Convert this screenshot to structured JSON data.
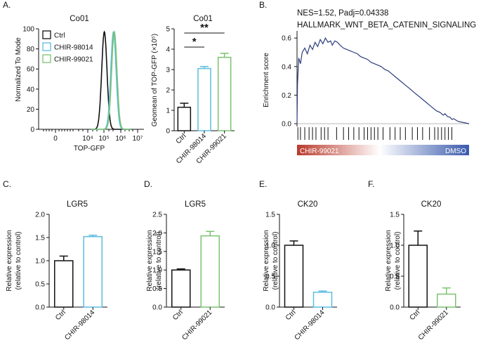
{
  "panel_letters": {
    "a": "A.",
    "b": "B.",
    "c": "C.",
    "d": "D.",
    "e": "E.",
    "f": "F."
  },
  "colors": {
    "ctrl": "#111111",
    "chir98014": "#5bbde0",
    "chir99021": "#7cc370",
    "gsea_curve": "#2c3e7e",
    "gsea_red": "#b93a2c",
    "gsea_blue": "#3a5aad"
  },
  "chart_data": [
    {
      "id": "A-flow",
      "type": "area",
      "title": "Co01",
      "xlabel": "TOP-GFP",
      "ylabel": "Normalized To Mode",
      "xscale": "biexponential",
      "xticks": [
        "0",
        "10⁴",
        "10⁵",
        "10⁶",
        "10⁷"
      ],
      "ylim": [
        0,
        100
      ],
      "yticks": [
        0,
        20,
        40,
        60,
        80,
        100
      ],
      "legend": [
        "Ctrl",
        "CHIR-98014",
        "CHIR-99021"
      ],
      "series": [
        {
          "name": "Ctrl",
          "color": "#111111",
          "peak_log10": 5.0,
          "width": 0.16,
          "height": 97
        },
        {
          "name": "CHIR-98014",
          "color": "#5bbde0",
          "peak_log10": 5.55,
          "width": 0.16,
          "height": 97
        },
        {
          "name": "CHIR-99021",
          "color": "#7cc370",
          "peak_log10": 5.6,
          "width": 0.16,
          "height": 97
        }
      ]
    },
    {
      "id": "A-bar",
      "type": "bar",
      "title": "Co01",
      "ylabel": "Geomean of TOP-GFP (×10⁵)",
      "ylim": [
        0,
        5
      ],
      "yticks": [
        0,
        1,
        2,
        3,
        4,
        5
      ],
      "categories": [
        "Ctrl",
        "CHIR-98014",
        "CHIR-99021"
      ],
      "values": [
        1.15,
        3.05,
        3.6
      ],
      "errors": [
        0.2,
        0.1,
        0.2
      ],
      "colors": [
        "#111111",
        "#5bbde0",
        "#7cc370"
      ],
      "significance": [
        {
          "from": 0,
          "to": 1,
          "label": "*"
        },
        {
          "from": 0,
          "to": 2,
          "label": "**"
        }
      ]
    },
    {
      "id": "B-gsea",
      "type": "line",
      "stat": "NES=1.52, Padj=0.04338",
      "title": "HALLMARK_WNT_BETA_CATENIN_SIGNALING",
      "ylabel": "Enrichment score",
      "ylim": [
        0,
        0.65
      ],
      "yticks": [
        "0.0",
        "0.2",
        "0.4",
        "0.6"
      ],
      "x_max": 1.0,
      "left_label": "CHIR-99021",
      "right_label": "DMSO",
      "points": [
        [
          0,
          0
        ],
        [
          0.003,
          0.28
        ],
        [
          0.01,
          0.46
        ],
        [
          0.02,
          0.42
        ],
        [
          0.03,
          0.5
        ],
        [
          0.045,
          0.53
        ],
        [
          0.06,
          0.49
        ],
        [
          0.075,
          0.55
        ],
        [
          0.09,
          0.52
        ],
        [
          0.105,
          0.57
        ],
        [
          0.12,
          0.54
        ],
        [
          0.135,
          0.59
        ],
        [
          0.15,
          0.56
        ],
        [
          0.165,
          0.6
        ],
        [
          0.18,
          0.57
        ],
        [
          0.195,
          0.58
        ],
        [
          0.205,
          0.55
        ],
        [
          0.22,
          0.58
        ],
        [
          0.235,
          0.57
        ],
        [
          0.25,
          0.55
        ],
        [
          0.27,
          0.53
        ],
        [
          0.29,
          0.52
        ],
        [
          0.31,
          0.51
        ],
        [
          0.33,
          0.5
        ],
        [
          0.35,
          0.49
        ],
        [
          0.37,
          0.47
        ],
        [
          0.39,
          0.46
        ],
        [
          0.41,
          0.45
        ],
        [
          0.43,
          0.43
        ],
        [
          0.45,
          0.42
        ],
        [
          0.47,
          0.41
        ],
        [
          0.49,
          0.4
        ],
        [
          0.51,
          0.38
        ],
        [
          0.53,
          0.37
        ],
        [
          0.55,
          0.35
        ],
        [
          0.57,
          0.33
        ],
        [
          0.59,
          0.31
        ],
        [
          0.61,
          0.29
        ],
        [
          0.63,
          0.27
        ],
        [
          0.65,
          0.25
        ],
        [
          0.67,
          0.23
        ],
        [
          0.69,
          0.21
        ],
        [
          0.71,
          0.19
        ],
        [
          0.73,
          0.17
        ],
        [
          0.75,
          0.15
        ],
        [
          0.77,
          0.13
        ],
        [
          0.79,
          0.11
        ],
        [
          0.81,
          0.09
        ],
        [
          0.83,
          0.08
        ],
        [
          0.85,
          0.06
        ],
        [
          0.86,
          0.07
        ],
        [
          0.875,
          0.05
        ],
        [
          0.89,
          0.045
        ],
        [
          0.9,
          0.03
        ],
        [
          0.91,
          0.035
        ],
        [
          0.93,
          0.02
        ],
        [
          0.94,
          0.015
        ],
        [
          0.96,
          0.01
        ],
        [
          0.98,
          0.005
        ],
        [
          1.0,
          0
        ]
      ],
      "hits": [
        0.005,
        0.02,
        0.045,
        0.07,
        0.09,
        0.11,
        0.14,
        0.16,
        0.18,
        0.23,
        0.27,
        0.3,
        0.33,
        0.36,
        0.39,
        0.41,
        0.43,
        0.45,
        0.47,
        0.5,
        0.54,
        0.57,
        0.6,
        0.63,
        0.67,
        0.7,
        0.73,
        0.77,
        0.8,
        0.82,
        0.84,
        0.86,
        0.88,
        0.9
      ]
    },
    {
      "id": "C",
      "type": "bar",
      "title": "LGR5",
      "ylabel": [
        "Relative expression",
        "(relative to control)"
      ],
      "ylim": [
        0,
        2.0
      ],
      "yticks": [
        "0.0",
        "0.5",
        "1.0",
        "1.5",
        "2.0"
      ],
      "categories": [
        "Ctrl",
        "CHIR-98014"
      ],
      "values": [
        1.0,
        1.52
      ],
      "errors": [
        0.1,
        0.03
      ],
      "colors": [
        "#111111",
        "#5bbde0"
      ]
    },
    {
      "id": "D",
      "type": "bar",
      "title": "LGR5",
      "ylabel": [
        "Relative expression",
        "(relative to control)"
      ],
      "ylim": [
        0,
        2.5
      ],
      "yticks": [
        "0.0",
        "0.5",
        "1.0",
        "1.5",
        "2.0",
        "2.5"
      ],
      "categories": [
        "Ctrl",
        "CHIR-99021"
      ],
      "values": [
        1.0,
        1.92
      ],
      "errors": [
        0.03,
        0.12
      ],
      "colors": [
        "#111111",
        "#7cc370"
      ]
    },
    {
      "id": "E",
      "type": "bar",
      "title": "CK20",
      "ylabel": [
        "Relative expression",
        "(relative to control)"
      ],
      "ylim": [
        0,
        1.5
      ],
      "yticks": [
        "0.0",
        "0.5",
        "1.0",
        "1.5"
      ],
      "categories": [
        "Ctrl",
        "CHIR-98014"
      ],
      "values": [
        1.0,
        0.24
      ],
      "errors": [
        0.07,
        0.02
      ],
      "colors": [
        "#111111",
        "#5bbde0"
      ]
    },
    {
      "id": "F",
      "type": "bar",
      "title": "CK20",
      "ylabel": [
        "Relative expression",
        "(relative to control)"
      ],
      "ylim": [
        0,
        1.5
      ],
      "yticks": [
        "0.0",
        "0.5",
        "1.0",
        "1.5"
      ],
      "categories": [
        "Ctrl",
        "CHIR-99021"
      ],
      "values": [
        1.0,
        0.21
      ],
      "errors": [
        0.23,
        0.1
      ],
      "colors": [
        "#111111",
        "#7cc370"
      ]
    }
  ]
}
